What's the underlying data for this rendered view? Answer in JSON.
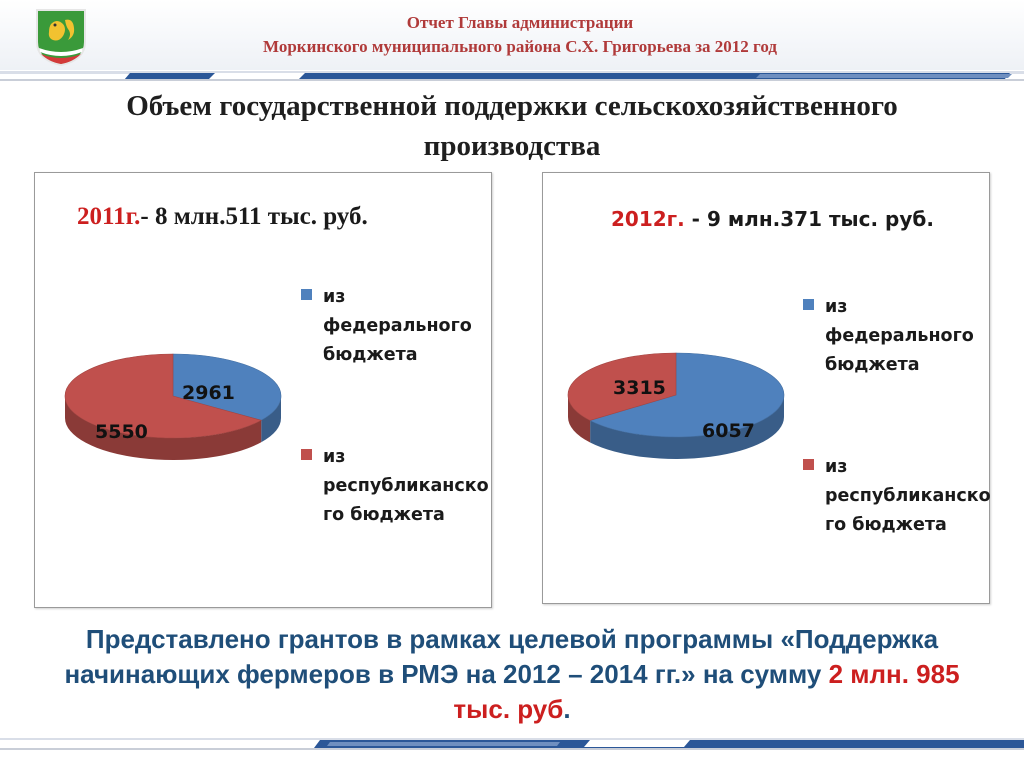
{
  "header": {
    "line1": "Отчет  Главы администрации",
    "line2": "Моркинского муниципального района С.Х. Григорьева за 2012 год"
  },
  "title": {
    "line1": "Объем государственной поддержки сельскохозяйственного",
    "line2": "производства"
  },
  "panels": [
    {
      "year": "2011г.",
      "amount": "- 8 млн.511 тыс. руб.",
      "legend": [
        {
          "line1": "из",
          "line2": "федерального",
          "line3": "бюджета",
          "color": "#4f81bd"
        },
        {
          "line1": "из",
          "line2": "республиканско",
          "line3": "го бюджета",
          "color": "#c0504d"
        }
      ]
    },
    {
      "year": "2012г.",
      "amount": " - 9 млн.371 тыс. руб.",
      "legend": [
        {
          "line1": "из",
          "line2": "федерального",
          "line3": "бюджета",
          "color": "#4f81bd"
        },
        {
          "line1": "из",
          "line2": "республиканско",
          "line3": "го бюджета",
          "color": "#c0504d"
        }
      ]
    }
  ],
  "chart_data": [
    {
      "type": "pie",
      "title": "2011г.- 8 млн.511 тыс. руб.",
      "categories": [
        "из федерального бюджета",
        "из республиканского бюджета"
      ],
      "values": [
        2961,
        5550
      ],
      "labels": [
        "2961",
        "5550"
      ],
      "colors": [
        "#4f81bd",
        "#c0504d"
      ],
      "legend": "right"
    },
    {
      "type": "pie",
      "title": "2012г. - 9 млн.371 тыс. руб.",
      "categories": [
        "из федерального бюджета",
        "из республиканского бюджета"
      ],
      "values": [
        6057,
        3315
      ],
      "labels": [
        "6057",
        "3315"
      ],
      "colors": [
        "#4f81bd",
        "#c0504d"
      ],
      "legend": "right"
    }
  ],
  "bottom": {
    "text_line1": "Представлено грантов в рамках целевой программы «Поддержка",
    "text_line2": "начинающих фермеров в РМЭ на 2012 – 2014 гг.» на сумму ",
    "highlight1": "2 млн. 985",
    "highlight2": "тыс. руб",
    "end": "."
  },
  "colors": {
    "accent_red": "#cc1f1f",
    "header_text": "#b03a3a",
    "bottom_text": "#1f4e79",
    "band_blue": "#2b5798"
  }
}
